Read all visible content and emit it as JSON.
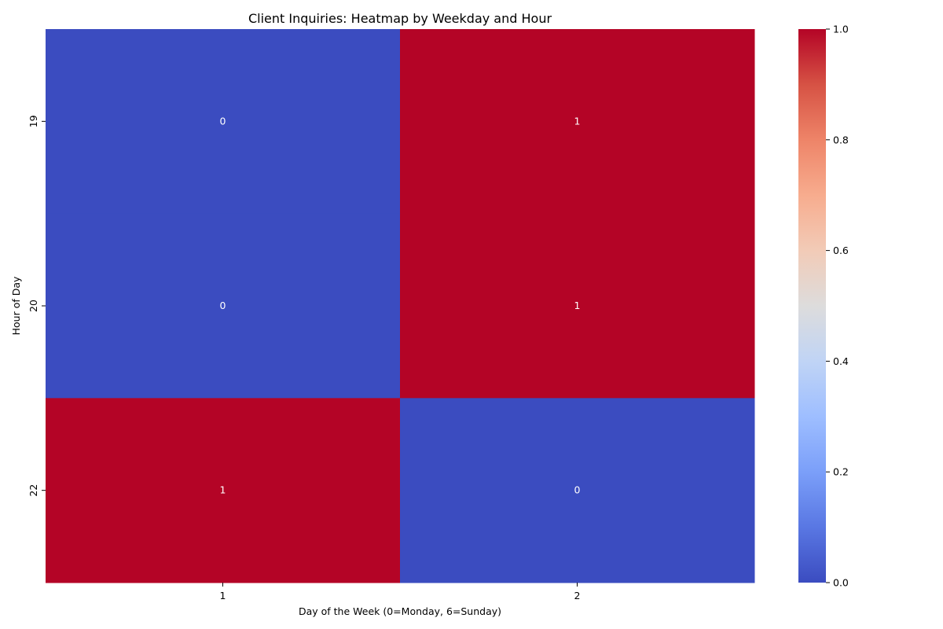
{
  "chart_data": {
    "type": "heatmap",
    "title": "Client Inquiries: Heatmap by Weekday and Hour",
    "xlabel": "Day of the Week (0=Monday, 6=Sunday)",
    "ylabel": "Hour of Day",
    "x_categories": [
      "1",
      "2"
    ],
    "y_categories": [
      "19",
      "20",
      "22"
    ],
    "values": [
      [
        0,
        1
      ],
      [
        0,
        1
      ],
      [
        1,
        0
      ]
    ],
    "annotations": [
      [
        "0",
        "1"
      ],
      [
        "0",
        "1"
      ],
      [
        "1",
        "0"
      ]
    ],
    "colormap": "coolwarm",
    "colorbar": {
      "range": [
        0.0,
        1.0
      ],
      "ticks": [
        "0.0",
        "0.2",
        "0.4",
        "0.6",
        "0.8",
        "1.0"
      ],
      "tick_values": [
        0.0,
        0.2,
        0.4,
        0.6,
        0.8,
        1.0
      ],
      "position": "right"
    },
    "colors": {
      "low": "#3b4cc0",
      "mid": "#dddddd",
      "high": "#b40426",
      "annotation_text": "#ffffff"
    }
  }
}
